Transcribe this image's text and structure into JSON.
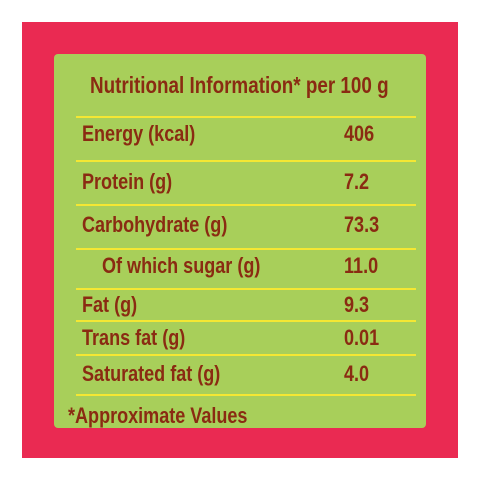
{
  "colors": {
    "border": "#ea2a52",
    "panel": "#a8cf5a",
    "text": "#8a2b12",
    "lines": "#f4e733"
  },
  "table": {
    "title": "Nutritional Information* per 100 g",
    "rows": [
      {
        "label": "Energy (kcal)",
        "value": "406"
      },
      {
        "label": "Protein (g)",
        "value": "7.2"
      },
      {
        "label": "Carbohydrate (g)",
        "value": "73.3"
      },
      {
        "label": "Of which sugar (g)",
        "value": "11.0"
      },
      {
        "label": "Fat (g)",
        "value": "9.3"
      },
      {
        "label": "Trans fat (g)",
        "value": "0.01"
      },
      {
        "label": "Saturated fat (g)",
        "value": "4.0"
      }
    ],
    "footnote": "*Approximate Values"
  }
}
